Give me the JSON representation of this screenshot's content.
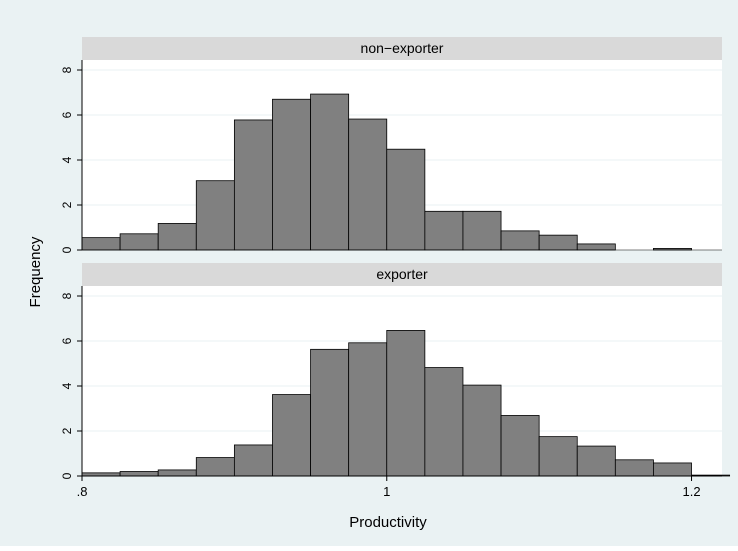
{
  "chart_data": {
    "type": "bar",
    "subtype": "histogram-by-group",
    "xlabel": "Productivity",
    "ylabel": "Frequency",
    "xlim": [
      0.8,
      1.22
    ],
    "ylim": [
      0,
      8
    ],
    "x_ticks": [
      {
        "value": 0.8,
        "label": ".8"
      },
      {
        "value": 1.0,
        "label": "1"
      },
      {
        "value": 1.2,
        "label": "1.2"
      }
    ],
    "y_ticks": [
      {
        "value": 0,
        "label": "0"
      },
      {
        "value": 2,
        "label": "2"
      },
      {
        "value": 4,
        "label": "4"
      },
      {
        "value": 6,
        "label": "6"
      },
      {
        "value": 8,
        "label": "8"
      }
    ],
    "bin_width": 0.025,
    "grid": true,
    "colors": {
      "background": "#eaf2f3",
      "plot_bg": "#ffffff",
      "strip": "#d9d9d9",
      "bar_fill": "#808080",
      "bar_edge": "#000000",
      "grid": "#eaf2f3"
    },
    "panels": [
      {
        "title": "non−exporter",
        "bins": [
          {
            "start": 0.8,
            "value": 0.55
          },
          {
            "start": 0.825,
            "value": 0.72
          },
          {
            "start": 0.85,
            "value": 1.18
          },
          {
            "start": 0.875,
            "value": 3.08
          },
          {
            "start": 0.9,
            "value": 5.78
          },
          {
            "start": 0.925,
            "value": 6.7
          },
          {
            "start": 0.95,
            "value": 6.93
          },
          {
            "start": 0.975,
            "value": 5.82
          },
          {
            "start": 1.0,
            "value": 4.48
          },
          {
            "start": 1.025,
            "value": 1.72
          },
          {
            "start": 1.05,
            "value": 1.72
          },
          {
            "start": 1.075,
            "value": 0.85
          },
          {
            "start": 1.1,
            "value": 0.66
          },
          {
            "start": 1.125,
            "value": 0.27
          },
          {
            "start": 1.15,
            "value": 0.0
          },
          {
            "start": 1.175,
            "value": 0.07
          }
        ]
      },
      {
        "title": "exporter",
        "bins": [
          {
            "start": 0.8,
            "value": 0.14
          },
          {
            "start": 0.825,
            "value": 0.2
          },
          {
            "start": 0.85,
            "value": 0.27
          },
          {
            "start": 0.875,
            "value": 0.82
          },
          {
            "start": 0.9,
            "value": 1.38
          },
          {
            "start": 0.925,
            "value": 3.62
          },
          {
            "start": 0.95,
            "value": 5.63
          },
          {
            "start": 0.975,
            "value": 5.92
          },
          {
            "start": 1.0,
            "value": 6.47
          },
          {
            "start": 1.025,
            "value": 4.82
          },
          {
            "start": 1.05,
            "value": 4.04
          },
          {
            "start": 1.075,
            "value": 2.69
          },
          {
            "start": 1.1,
            "value": 1.75
          },
          {
            "start": 1.125,
            "value": 1.33
          },
          {
            "start": 1.15,
            "value": 0.72
          },
          {
            "start": 1.175,
            "value": 0.58
          },
          {
            "start": 1.2,
            "value": 0.04
          }
        ]
      }
    ]
  }
}
